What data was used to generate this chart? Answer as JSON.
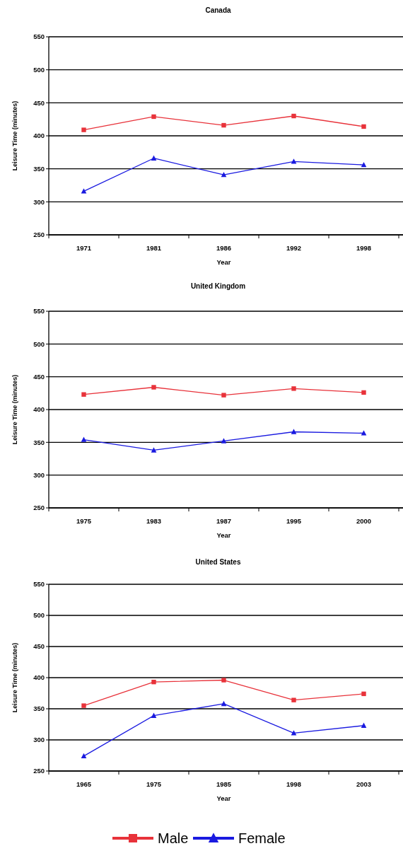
{
  "chart_data": [
    {
      "type": "line",
      "title": "Canada",
      "xlabel": "Year",
      "ylabel": "Leisure Time (minutes)",
      "categories": [
        "1971",
        "1981",
        "1986",
        "1992",
        "1998"
      ],
      "ylim": [
        250,
        550
      ],
      "yticks": [
        250,
        300,
        350,
        400,
        450,
        500,
        550
      ],
      "grid": "y",
      "series": [
        {
          "color": "#e8323a",
          "marker": "square",
          "values": [
            409,
            429,
            416,
            430,
            414
          ]
        },
        {
          "color": "#1a1ae0",
          "marker": "triangle",
          "values": [
            316,
            366,
            341,
            361,
            356
          ]
        }
      ]
    },
    {
      "type": "line",
      "title": "United Kingdom",
      "xlabel": "Year",
      "ylabel": "Leisure Time (minutes)",
      "categories": [
        "1975",
        "1983",
        "1987",
        "1995",
        "2000"
      ],
      "ylim": [
        250,
        550
      ],
      "yticks": [
        250,
        300,
        350,
        400,
        450,
        500,
        550
      ],
      "grid": "y",
      "series": [
        {
          "color": "#e8323a",
          "marker": "square",
          "values": [
            423,
            434,
            422,
            432,
            426
          ]
        },
        {
          "color": "#1a1ae0",
          "marker": "triangle",
          "values": [
            354,
            338,
            352,
            366,
            364
          ]
        }
      ]
    },
    {
      "type": "line",
      "title": "United States",
      "xlabel": "Year",
      "ylabel": "Leisure Time (minutes)",
      "categories": [
        "1965",
        "1975",
        "1985",
        "1998",
        "2003"
      ],
      "ylim": [
        250,
        550
      ],
      "yticks": [
        250,
        300,
        350,
        400,
        450,
        500,
        550
      ],
      "grid": "y",
      "legend": "bottom",
      "series": [
        {
          "name": "Male",
          "color": "#e8323a",
          "marker": "square",
          "values": [
            355,
            393,
            396,
            364,
            374
          ]
        },
        {
          "name": "Female",
          "color": "#1a1ae0",
          "marker": "triangle",
          "values": [
            274,
            339,
            358,
            311,
            323
          ]
        }
      ]
    }
  ]
}
